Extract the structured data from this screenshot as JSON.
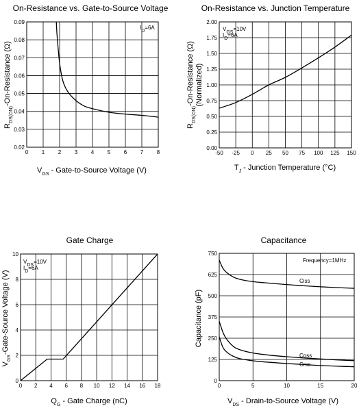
{
  "chart_data": [
    {
      "type": "line",
      "title": "On-Resistance vs. Gate-to-Source Voltage",
      "xlabel": "VGS - Gate-to-Source Voltage (V)",
      "ylabel": "RDS(ON)-On-Resistance (Ω)",
      "annotation": "ID=6A",
      "xlim": [
        0,
        8
      ],
      "ylim": [
        0.02,
        0.09
      ],
      "xticks": [
        "0",
        "1",
        "2",
        "3",
        "4",
        "5",
        "6",
        "7",
        "8"
      ],
      "yticks": [
        "0.02",
        "0.03",
        "0.04",
        "0.05",
        "0.06",
        "0.07",
        "0.08",
        "0.09"
      ],
      "grid": true,
      "series": [
        {
          "x": [
            1.8,
            1.85,
            2.0,
            2.2,
            2.5,
            3.0,
            3.5,
            4.0,
            5.0,
            6.0,
            7.0,
            8.0
          ],
          "y": [
            0.09,
            0.082,
            0.067,
            0.057,
            0.051,
            0.046,
            0.043,
            0.0415,
            0.0395,
            0.0385,
            0.0378,
            0.0368
          ]
        }
      ]
    },
    {
      "type": "line",
      "title": "On-Resistance vs. Junction Temperature",
      "xlabel": "TJ - Junction Temperature (°C)",
      "ylabel": "RDS(ON)-On-Resistance (Ω)",
      "ylabel2": "(Normalized)",
      "annotation": [
        "VGS=10V",
        "ID=6A"
      ],
      "xlim": [
        -50,
        150
      ],
      "ylim": [
        0,
        2
      ],
      "xticks": [
        "-50",
        "-25",
        "0",
        "25",
        "50",
        "75",
        "100",
        "125",
        "150"
      ],
      "yticks": [
        "0.00",
        "0.25",
        "0.50",
        "0.75",
        "1.00",
        "1.25",
        "1.50",
        "1.75",
        "2.00"
      ],
      "grid": true,
      "series": [
        {
          "x": [
            -50,
            -25,
            0,
            25,
            50,
            75,
            100,
            125,
            150
          ],
          "y": [
            0.63,
            0.72,
            0.85,
            1.0,
            1.12,
            1.27,
            1.43,
            1.6,
            1.79
          ]
        }
      ]
    },
    {
      "type": "line",
      "title": "Gate Charge",
      "xlabel": "QG - Gate Charge (nC)",
      "ylabel": "VGS-Gate-Source Voltage (V)",
      "annotation": [
        "VDS=10V",
        "ID=6A"
      ],
      "xlim": [
        0,
        18
      ],
      "ylim": [
        0,
        10
      ],
      "xticks": [
        "0",
        "2",
        "4",
        "6",
        "8",
        "10",
        "12",
        "14",
        "16",
        "18"
      ],
      "yticks": [
        "0",
        "2",
        "4",
        "6",
        "8",
        "10"
      ],
      "grid": true,
      "series": [
        {
          "x": [
            0,
            3.5,
            5.6,
            18
          ],
          "y": [
            0,
            1.7,
            1.7,
            10
          ]
        }
      ]
    },
    {
      "type": "line",
      "title": "Capacitance",
      "xlabel": "VDS - Drain-to-Source Voltage (V)",
      "ylabel": "Capacitance (pF)",
      "annotation": "Frequency=1MHz",
      "xlim": [
        0,
        20
      ],
      "ylim": [
        0,
        750
      ],
      "xticks": [
        "0",
        "5",
        "10",
        "15",
        "20"
      ],
      "yticks": [
        "0",
        "125",
        "250",
        "375",
        "500",
        "625",
        "750"
      ],
      "grid": true,
      "series": [
        {
          "name": "Ciss",
          "x": [
            0,
            0.5,
            1,
            2,
            3,
            5,
            7.5,
            10,
            12.5,
            15,
            17.5,
            20
          ],
          "y": [
            710,
            665,
            640,
            612,
            597,
            583,
            574,
            566,
            559,
            553,
            548,
            544
          ]
        },
        {
          "name": "Coss",
          "x": [
            0,
            0.5,
            1,
            2,
            3,
            5,
            7.5,
            10,
            12.5,
            15,
            17.5,
            20
          ],
          "y": [
            350,
            290,
            250,
            205,
            183,
            163,
            150,
            141,
            134,
            128,
            122,
            118
          ]
        },
        {
          "name": "Crss",
          "x": [
            0,
            0.5,
            1,
            2,
            3,
            5,
            7.5,
            10,
            12.5,
            15,
            17.5,
            20
          ],
          "y": [
            258,
            200,
            172,
            145,
            130,
            117,
            108,
            101,
            95,
            89,
            85,
            82
          ]
        }
      ]
    }
  ]
}
